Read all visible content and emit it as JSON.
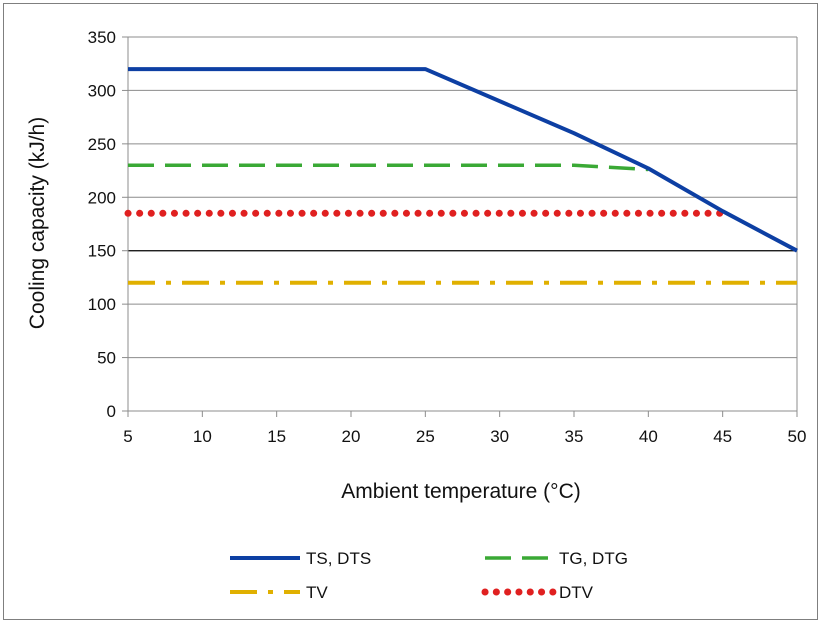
{
  "chart_data": {
    "type": "line",
    "xlabel": "Ambient temperature (°C)",
    "ylabel": "Cooling capacity (kJ/h)",
    "xlim": [
      5,
      50
    ],
    "ylim": [
      0,
      350
    ],
    "x_ticks": [
      5,
      10,
      15,
      20,
      25,
      30,
      35,
      40,
      45,
      50
    ],
    "y_ticks": [
      0,
      50,
      100,
      150,
      200,
      250,
      300,
      350
    ],
    "highlight_gridline_y": 150,
    "series": [
      {
        "name": "TS, DTS",
        "color": "#0d3fa3",
        "style": "solid",
        "x": [
          5,
          25,
          35,
          40,
          45,
          50
        ],
        "y": [
          320,
          320,
          260,
          227,
          187,
          150
        ]
      },
      {
        "name": "TG, DTG",
        "color": "#3aa935",
        "style": "dashed",
        "x": [
          5,
          35,
          40
        ],
        "y": [
          230,
          230,
          226
        ]
      },
      {
        "name": "TV",
        "color": "#e0b000",
        "style": "dash-dot",
        "x": [
          5,
          50
        ],
        "y": [
          120,
          120
        ]
      },
      {
        "name": "DTV",
        "color": "#e02020",
        "style": "dotted",
        "x": [
          5,
          45
        ],
        "y": [
          185,
          185
        ]
      }
    ],
    "legend_position": "bottom"
  }
}
